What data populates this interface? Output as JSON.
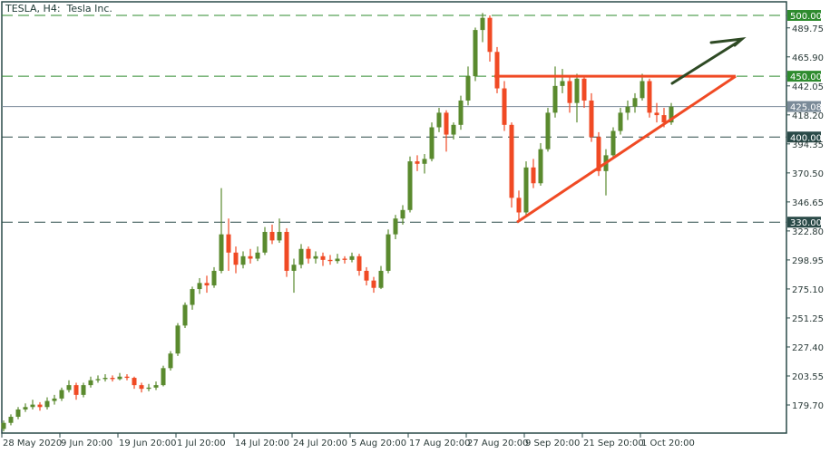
{
  "header": {
    "title": "TESLA, H4:  Tesla Inc."
  },
  "colors": {
    "bull": "#5a8a2e",
    "bear": "#f04a24",
    "axis": "#2a4a48",
    "grid_green": "#2e8b2e",
    "grid_dark": "#2a4a48",
    "current": "#7a8a98",
    "trend": "#f04a24",
    "arrow": "#2e4a24"
  },
  "chart_data": {
    "type": "candlestick",
    "title": "TESLA, H4:  Tesla Inc.",
    "ylim": [
      160,
      510
    ],
    "y_ticks": [
      "489.75",
      "465.90",
      "442.05",
      "418.20",
      "394.35",
      "370.50",
      "346.65",
      "322.80",
      "298.95",
      "275.10",
      "251.25",
      "227.40",
      "203.55",
      "179.70"
    ],
    "x_ticks": [
      "28 May 2020",
      "9 Jun 20:00",
      "19 Jun 20:00",
      "1 Jul 20:00",
      "14 Jul 20:00",
      "24 Jul 20:00",
      "5 Aug 20:00",
      "17 Aug 20:00",
      "27 Aug 20:00",
      "9 Sep 20:00",
      "21 Sep 20:00",
      "1 Oct 20:00"
    ],
    "levels": [
      {
        "price": 500,
        "label": "500.00",
        "style": "dashed",
        "color": "#2e8b2e"
      },
      {
        "price": 450,
        "label": "450.00",
        "style": "dashed",
        "color": "#2e8b2e"
      },
      {
        "price": 400,
        "label": "400.00",
        "style": "dashed",
        "color": "#2a4a48"
      },
      {
        "price": 330,
        "label": "330.00",
        "style": "dashed",
        "color": "#2a4a48"
      }
    ],
    "current_price": {
      "price": 425.08,
      "label": "425.08"
    },
    "ohlc": [
      [
        160,
        167,
        158,
        165
      ],
      [
        165,
        172,
        163,
        170
      ],
      [
        170,
        178,
        168,
        176
      ],
      [
        176,
        181,
        174,
        178
      ],
      [
        178,
        184,
        176,
        180
      ],
      [
        180,
        182,
        175,
        178
      ],
      [
        178,
        186,
        176,
        183
      ],
      [
        183,
        188,
        180,
        185
      ],
      [
        185,
        194,
        183,
        192
      ],
      [
        192,
        200,
        190,
        196
      ],
      [
        196,
        198,
        184,
        188
      ],
      [
        188,
        198,
        186,
        196
      ],
      [
        196,
        203,
        194,
        200
      ],
      [
        200,
        204,
        198,
        201
      ],
      [
        201,
        205,
        199,
        202
      ],
      [
        202,
        204,
        199,
        201
      ],
      [
        201,
        206,
        200,
        203
      ],
      [
        203,
        205,
        200,
        202
      ],
      [
        202,
        203,
        193,
        196
      ],
      [
        196,
        198,
        190,
        193
      ],
      [
        193,
        197,
        191,
        194
      ],
      [
        194,
        199,
        192,
        196
      ],
      [
        196,
        212,
        195,
        210
      ],
      [
        210,
        224,
        208,
        222
      ],
      [
        222,
        247,
        220,
        245
      ],
      [
        245,
        264,
        243,
        262
      ],
      [
        262,
        277,
        258,
        275
      ],
      [
        275,
        284,
        271,
        280
      ],
      [
        280,
        286,
        272,
        278
      ],
      [
        278,
        293,
        276,
        290
      ],
      [
        290,
        358,
        288,
        320
      ],
      [
        320,
        333,
        290,
        305
      ],
      [
        305,
        310,
        288,
        295
      ],
      [
        295,
        306,
        292,
        302
      ],
      [
        302,
        308,
        296,
        300
      ],
      [
        300,
        310,
        298,
        305
      ],
      [
        305,
        326,
        303,
        322
      ],
      [
        322,
        328,
        312,
        315
      ],
      [
        315,
        333,
        313,
        322
      ],
      [
        322,
        325,
        285,
        290
      ],
      [
        290,
        300,
        272,
        295
      ],
      [
        295,
        312,
        292,
        308
      ],
      [
        308,
        310,
        296,
        300
      ],
      [
        300,
        306,
        296,
        302
      ],
      [
        302,
        305,
        294,
        299
      ],
      [
        299,
        303,
        295,
        298
      ],
      [
        298,
        304,
        296,
        300
      ],
      [
        300,
        302,
        296,
        299
      ],
      [
        299,
        305,
        297,
        302
      ],
      [
        302,
        304,
        286,
        290
      ],
      [
        290,
        293,
        278,
        282
      ],
      [
        282,
        285,
        272,
        276
      ],
      [
        276,
        294,
        275,
        290
      ],
      [
        290,
        324,
        288,
        320
      ],
      [
        320,
        336,
        316,
        333
      ],
      [
        333,
        344,
        328,
        340
      ],
      [
        340,
        384,
        338,
        380
      ],
      [
        380,
        385,
        372,
        378
      ],
      [
        378,
        386,
        370,
        382
      ],
      [
        382,
        412,
        380,
        408
      ],
      [
        408,
        424,
        404,
        420
      ],
      [
        420,
        422,
        388,
        402
      ],
      [
        402,
        412,
        398,
        410
      ],
      [
        410,
        434,
        406,
        430
      ],
      [
        430,
        458,
        426,
        450
      ],
      [
        450,
        490,
        446,
        488
      ],
      [
        488,
        502,
        478,
        498
      ],
      [
        498,
        500,
        462,
        470
      ],
      [
        470,
        474,
        436,
        440
      ],
      [
        440,
        446,
        405,
        410
      ],
      [
        410,
        412,
        342,
        350
      ],
      [
        350,
        356,
        332,
        338
      ],
      [
        338,
        380,
        336,
        375
      ],
      [
        375,
        382,
        358,
        362
      ],
      [
        362,
        395,
        360,
        390
      ],
      [
        390,
        424,
        388,
        420
      ],
      [
        420,
        458,
        416,
        442
      ],
      [
        442,
        456,
        436,
        446
      ],
      [
        446,
        450,
        420,
        428
      ],
      [
        428,
        452,
        412,
        448
      ],
      [
        448,
        450,
        424,
        430
      ],
      [
        430,
        436,
        396,
        400
      ],
      [
        400,
        404,
        368,
        372
      ],
      [
        372,
        390,
        352,
        385
      ],
      [
        385,
        408,
        382,
        405
      ],
      [
        405,
        424,
        402,
        420
      ],
      [
        420,
        430,
        414,
        425
      ],
      [
        425,
        436,
        420,
        432
      ],
      [
        432,
        452,
        430,
        446
      ],
      [
        446,
        448,
        416,
        420
      ],
      [
        420,
        428,
        412,
        418
      ],
      [
        418,
        424,
        408,
        412
      ],
      [
        412,
        428,
        410,
        425
      ]
    ],
    "drawings": {
      "resistance_price": 450,
      "trendline_from_price": 330,
      "trendline_to_price": 450,
      "arrow": "up-right"
    }
  }
}
